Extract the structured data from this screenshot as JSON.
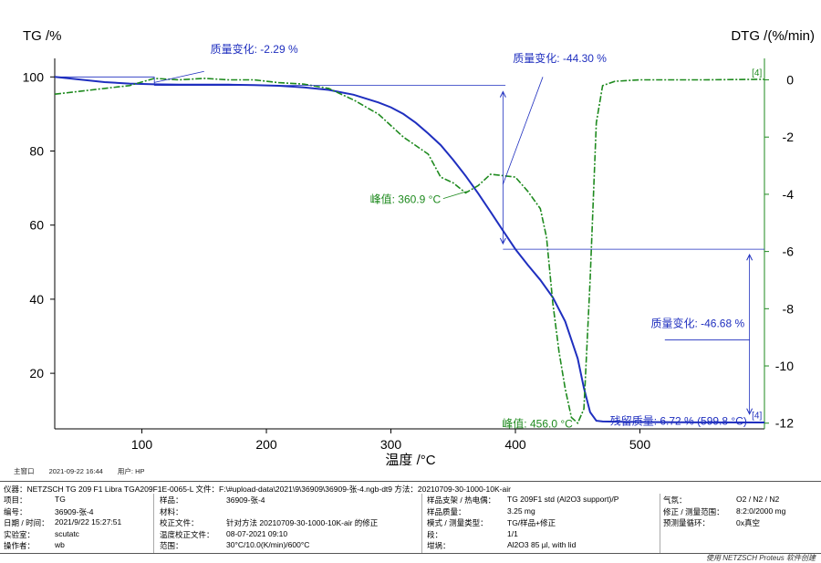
{
  "chart_data": {
    "type": "line",
    "left_axis_title": "TG /%",
    "right_axis_title": "DTG /(%/min)",
    "x_axis_title": "温度 /°C",
    "xlim": [
      30,
      600
    ],
    "ylim_left": [
      5,
      105
    ],
    "ylim_right": [
      -12.2,
      0.75
    ],
    "x_ticks": [
      100,
      200,
      300,
      400,
      500
    ],
    "y_left_ticks": [
      20,
      40,
      60,
      80,
      100
    ],
    "y_right_ticks": [
      0,
      -2,
      -4,
      -6,
      -8,
      -10,
      -12
    ],
    "colors": {
      "tg": "#1f2fbf",
      "dtg": "#1e8a1e",
      "annot": "#1f2fbf"
    },
    "series": [
      {
        "key": "tg",
        "axis": "left",
        "x": [
          30,
          50,
          70,
          90,
          110,
          130,
          150,
          170,
          190,
          210,
          230,
          250,
          270,
          290,
          300,
          310,
          320,
          330,
          340,
          350,
          360,
          370,
          380,
          390,
          400,
          410,
          420,
          430,
          440,
          450,
          455,
          460,
          465,
          470,
          480,
          500,
          550,
          600
        ],
        "y": [
          100,
          99.3,
          98.6,
          98.2,
          98.0,
          97.9,
          97.9,
          97.9,
          97.8,
          97.6,
          97.2,
          96.5,
          95.2,
          93.1,
          91.8,
          90.0,
          87.6,
          84.7,
          81.6,
          77.6,
          73.3,
          68.6,
          63.6,
          58.5,
          53.5,
          49.2,
          45.2,
          40.5,
          34.0,
          24.0,
          16.0,
          9.5,
          7.2,
          7.0,
          6.95,
          6.85,
          6.75,
          6.72
        ]
      },
      {
        "key": "dtg",
        "axis": "right",
        "x": [
          30,
          50,
          70,
          90,
          110,
          130,
          150,
          170,
          190,
          210,
          230,
          250,
          270,
          290,
          310,
          330,
          340,
          350,
          360,
          370,
          380,
          390,
          400,
          410,
          420,
          425,
          430,
          435,
          440,
          445,
          450,
          455,
          460,
          465,
          470,
          480,
          500,
          550,
          600
        ],
        "y": [
          -0.5,
          -0.4,
          -0.3,
          -0.2,
          0.05,
          0.0,
          0.05,
          0.0,
          0.0,
          -0.1,
          -0.15,
          -0.3,
          -0.7,
          -1.2,
          -2.0,
          -2.6,
          -3.4,
          -3.6,
          -3.95,
          -3.7,
          -3.3,
          -3.35,
          -3.4,
          -3.9,
          -4.5,
          -5.5,
          -7.8,
          -9.5,
          -10.8,
          -11.8,
          -12.0,
          -11.5,
          -7.0,
          -1.5,
          -0.2,
          -0.05,
          0.0,
          0.0,
          0.02
        ]
      }
    ],
    "annotations": {
      "mass_change_1": "质量变化: -2.29 %",
      "mass_change_2": "质量变化: -44.30 %",
      "mass_change_3": "质量变化: -46.68 %",
      "peak_1": "峰值: 360.9 °C",
      "peak_2": "峰值: 456.0 °C",
      "residual": "残留质量: 6.72 % (599.8 °C)",
      "marker": "[4]"
    }
  },
  "statusbar": {
    "window": "主窗口",
    "datetime": "2021-09-22 16:44",
    "user": "用户: HP"
  },
  "info": {
    "instrument_line": "仪器：NETZSCH TG 209 F1 Libra TGA209F1E-0065-L  文件：F:\\#upload-data\\2021\\9\\36909\\36909-张-4.ngb-dt9  方法：20210709-30-1000-10K-air",
    "rows": [
      [
        "项目：",
        "TG",
        "样品：",
        "36909-张-4",
        "样品支架 / 热电偶：",
        "TG 209F1 std (Al2O3 support)/P",
        "气氛：",
        "O2 / N2 / N2"
      ],
      [
        "编号：",
        "36909-张-4",
        "材料：",
        "",
        "样品质量：",
        "3.25 mg",
        "修正 / 测量范围：",
        "8:2:0/2000 mg"
      ],
      [
        "日期 / 时间：",
        "2021/9/22 15:27:51",
        "校正文件：",
        "针对方法 20210709-30-1000-10K-air 的修正",
        "模式 / 测量类型：",
        "TG/样品+修正",
        "预测量循环：",
        "0x真空"
      ],
      [
        "实验室：",
        "scutatc",
        "温度校正文件：",
        "08-07-2021 09:10",
        "段：",
        "1/1",
        "",
        ""
      ],
      [
        "操作者：",
        "wb",
        "范围：",
        "30°C/10.0(K/min)/600°C",
        "坩埚：",
        "Al2O3 85 µl, with lid",
        "",
        ""
      ]
    ],
    "footer": "使用 NETZSCH Proteus 软件创建"
  }
}
